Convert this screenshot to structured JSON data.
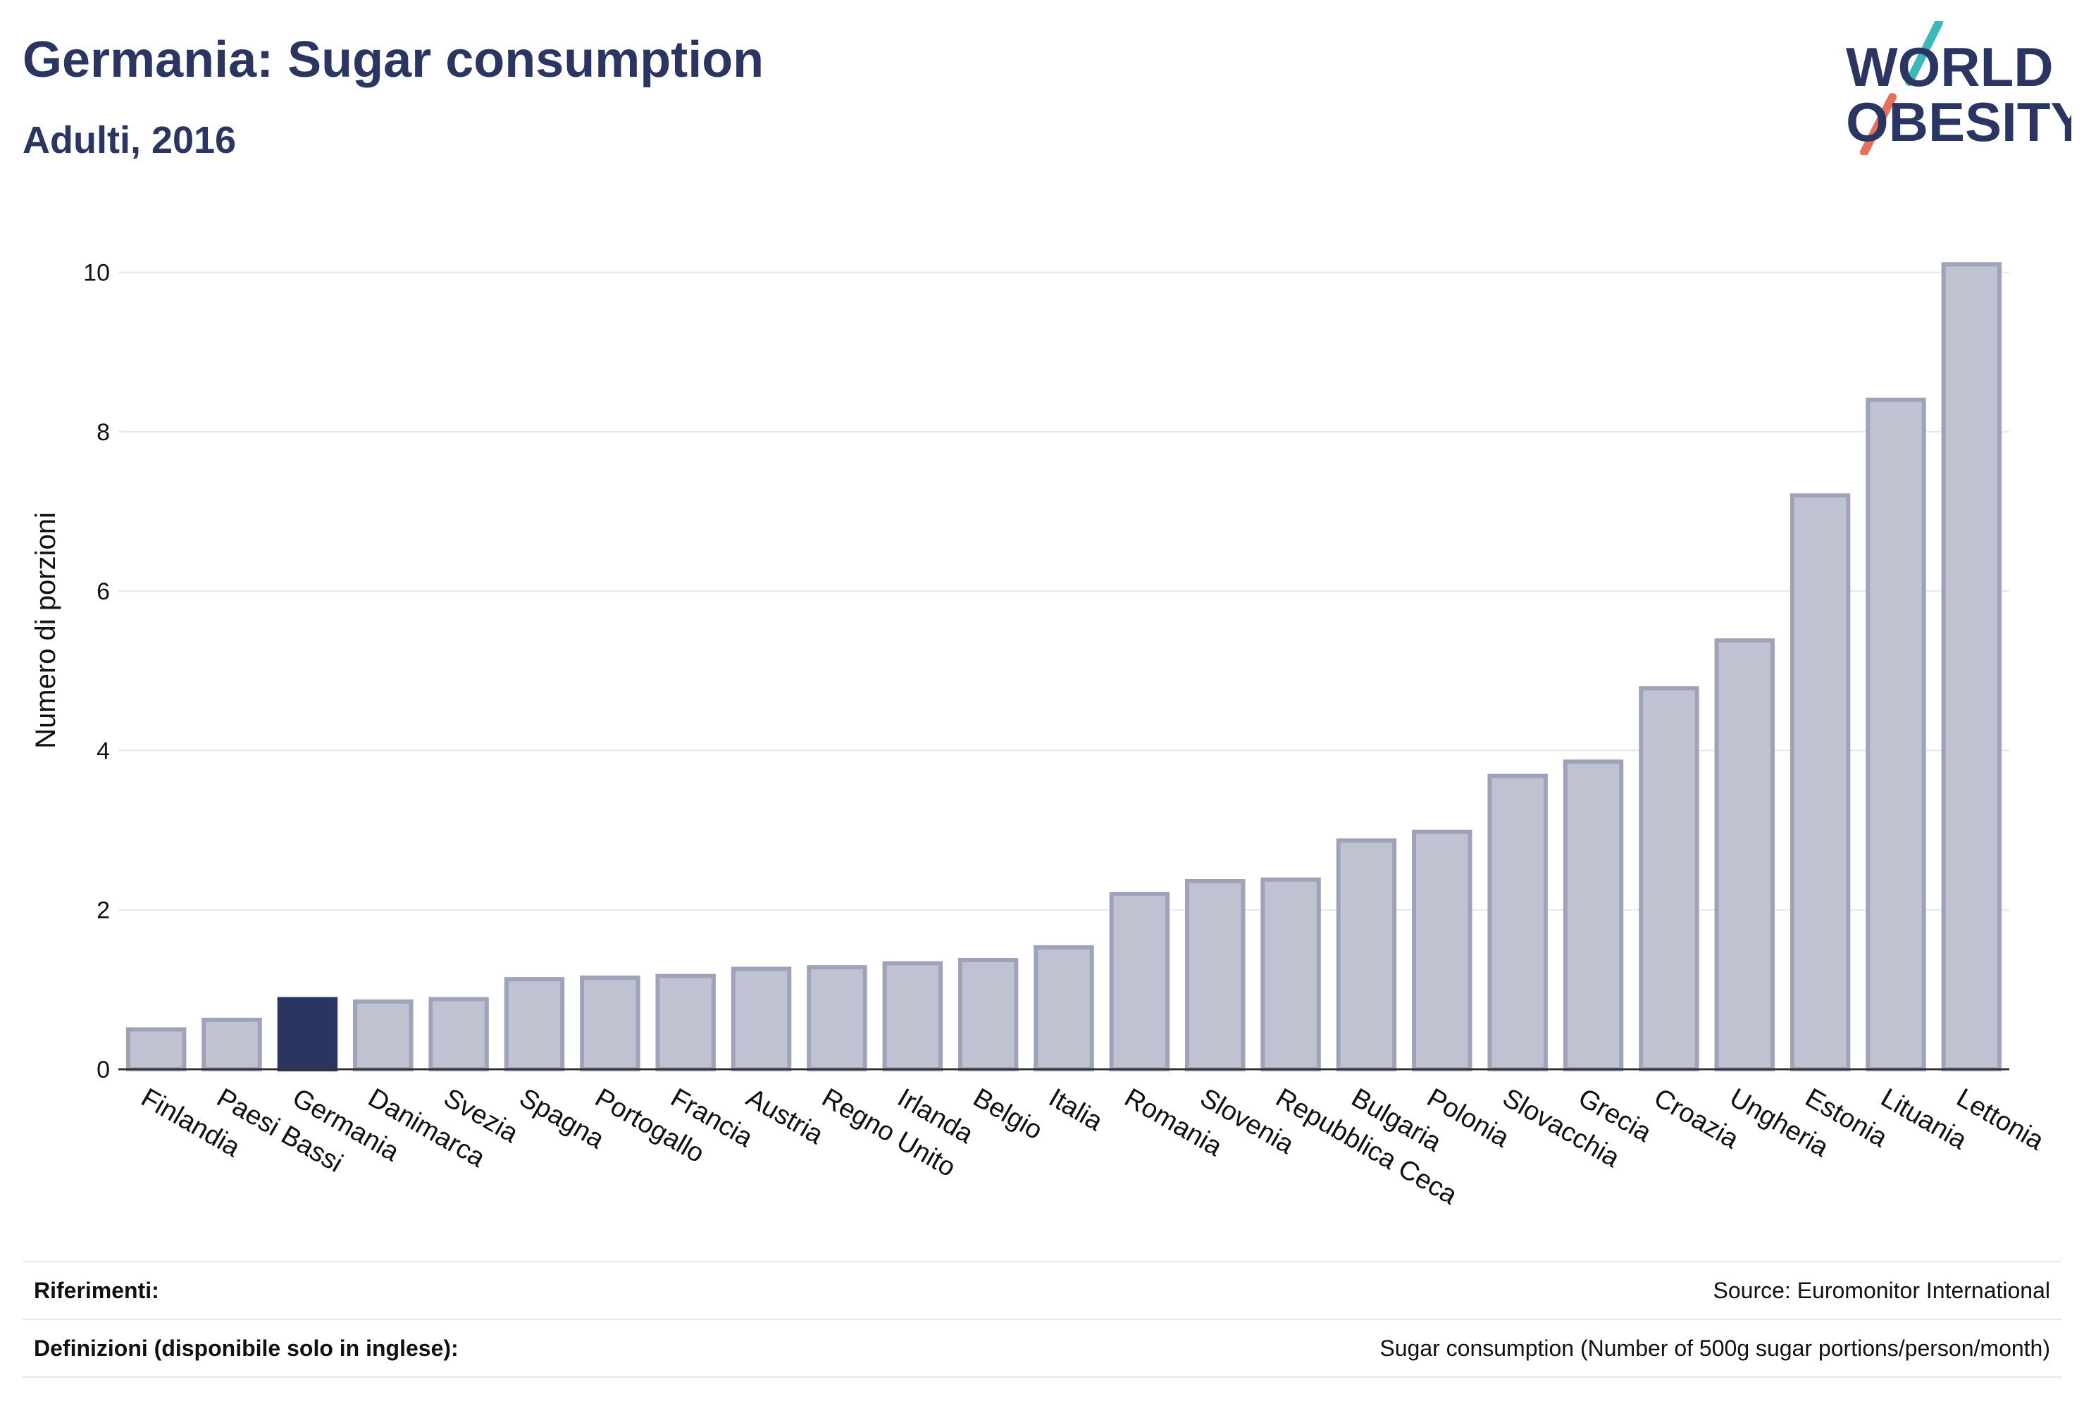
{
  "header": {
    "title": "Germania: Sugar consumption",
    "subtitle": "Adulti, 2016",
    "logo_line1": "WORLD",
    "logo_line2": "OBESITY"
  },
  "colors": {
    "highlight": "#2b3561",
    "bar": "#bfc2d0",
    "bar_stroke": "#9fa3b9",
    "accent_teal": "#3bb8b8",
    "accent_coral": "#e8705a"
  },
  "chart_data": {
    "type": "bar",
    "title": "Germania: Sugar consumption",
    "subtitle": "Adulti, 2016",
    "xlabel": "",
    "ylabel": "Numero di porzioni",
    "ylim": [
      0,
      10.5
    ],
    "yticks": [
      0,
      2,
      4,
      6,
      8,
      10
    ],
    "grid": true,
    "highlight": "Germania",
    "categories": [
      "Finlandia",
      "Paesi Bassi",
      "Germania",
      "Danimarca",
      "Svezia",
      "Spagna",
      "Portogallo",
      "Francia",
      "Austria",
      "Regno Unito",
      "Irlanda",
      "Belgio",
      "Italia",
      "Romania",
      "Slovenia",
      "Repubblica Ceca",
      "Bulgaria",
      "Polonia",
      "Slovacchia",
      "Grecia",
      "Croazia",
      "Ungheria",
      "Estonia",
      "Lituania",
      "Lettonia"
    ],
    "values": [
      0.5,
      0.62,
      0.88,
      0.85,
      0.88,
      1.13,
      1.15,
      1.17,
      1.26,
      1.28,
      1.33,
      1.37,
      1.53,
      2.2,
      2.36,
      2.38,
      2.87,
      2.98,
      3.68,
      3.86,
      4.78,
      5.38,
      7.2,
      8.4,
      10.1
    ]
  },
  "footer": {
    "references_label": "Riferimenti:",
    "references_value": "Source: Euromonitor International",
    "definitions_label": "Definizioni (disponibile solo in inglese):",
    "definitions_value": "Sugar consumption (Number of 500g sugar portions/person/month)"
  }
}
